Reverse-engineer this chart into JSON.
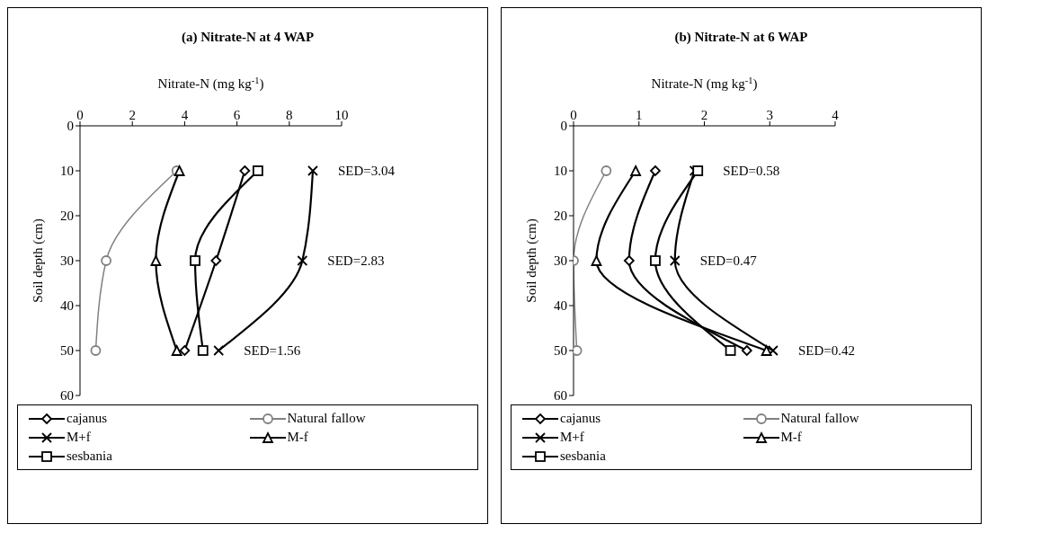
{
  "chart_data": [
    {
      "type": "line",
      "title": "(a) Nitrate-N at 4 WAP",
      "xlabel": "Nitrate-N (mg kg$^{-1}$)",
      "ylabel": "Soil depth (cm)",
      "orientation": "horizontal",
      "x": [
        10,
        30,
        50
      ],
      "xlim": [
        0,
        10
      ],
      "xticks": [
        0,
        2,
        4,
        6,
        8,
        10
      ],
      "ylim": [
        60,
        0
      ],
      "yticks": [
        0,
        10,
        20,
        30,
        40,
        50,
        60
      ],
      "grid": false,
      "legend": "bottom",
      "line_style": "solid",
      "series": [
        {
          "name": "cajanus",
          "color": "#000000",
          "marker": "diamond",
          "values": [
            6.3,
            5.2,
            4.0
          ]
        },
        {
          "name": "Natural fallow",
          "color": "#808080",
          "marker": "circle",
          "values": [
            3.7,
            1.0,
            0.6
          ]
        },
        {
          "name": "M+f",
          "color": "#000000",
          "marker": "cross",
          "values": [
            8.9,
            8.5,
            5.3
          ]
        },
        {
          "name": "M-f",
          "color": "#000000",
          "marker": "triangle",
          "values": [
            3.8,
            2.9,
            3.7
          ]
        },
        {
          "name": "sesbania",
          "color": "#000000",
          "marker": "square",
          "values": [
            6.8,
            4.4,
            4.7
          ]
        }
      ],
      "annotations": [
        "SED=3.04",
        "SED=2.83",
        "SED=1.56"
      ]
    },
    {
      "type": "line",
      "title": "(b) Nitrate-N at 6 WAP",
      "xlabel": "Nitrate-N (mg kg$^{-1}$)",
      "ylabel": "Soil depth (cm)",
      "orientation": "horizontal",
      "x": [
        10,
        30,
        50
      ],
      "xlim": [
        0,
        4
      ],
      "xticks": [
        0,
        1,
        2,
        3,
        4
      ],
      "ylim": [
        60,
        0
      ],
      "yticks": [
        0,
        10,
        20,
        30,
        40,
        50,
        60
      ],
      "grid": false,
      "legend": "bottom",
      "line_style": "solid",
      "series": [
        {
          "name": "cajanus",
          "color": "#000000",
          "marker": "diamond",
          "values": [
            1.25,
            0.85,
            2.65
          ]
        },
        {
          "name": "Natural fallow",
          "color": "#808080",
          "marker": "circle",
          "values": [
            0.5,
            0.0,
            0.05
          ]
        },
        {
          "name": "M+f",
          "color": "#000000",
          "marker": "cross",
          "values": [
            1.85,
            1.55,
            3.05
          ]
        },
        {
          "name": "M-f",
          "color": "#000000",
          "marker": "triangle",
          "values": [
            0.95,
            0.35,
            2.95
          ]
        },
        {
          "name": "sesbania",
          "color": "#000000",
          "marker": "square",
          "values": [
            1.9,
            1.25,
            2.4
          ]
        }
      ],
      "annotations": [
        "SED=0.58",
        "SED=0.47",
        "SED=0.42"
      ]
    }
  ]
}
